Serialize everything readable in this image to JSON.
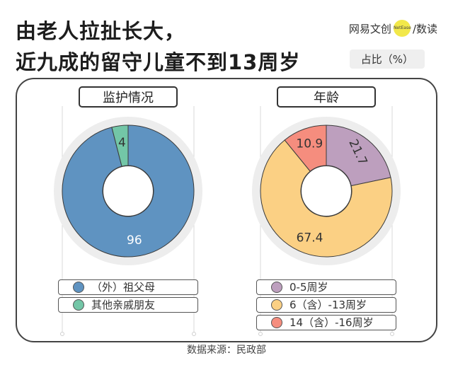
{
  "title_line1": "由老人拉扯长大，",
  "title_line2": "近九成的留守儿童不到13周岁",
  "brand": {
    "left": "网易文创",
    "mark": "NetEase",
    "right": "/数读"
  },
  "unit": "占比（%）",
  "source": "数据来源：民政部",
  "chart_data": [
    {
      "type": "pie",
      "title": "监护情况",
      "categories": [
        "（外）祖父母",
        "其他亲戚朋友"
      ],
      "values": [
        96,
        4
      ],
      "value_labels": [
        "96",
        "4"
      ],
      "colors": [
        "#5f93c1",
        "#73c6a7"
      ]
    },
    {
      "type": "pie",
      "title": "年龄",
      "categories": [
        "0-5周岁",
        "6（含）-13周岁",
        "14（含）-16周岁"
      ],
      "values": [
        21.7,
        67.4,
        10.9
      ],
      "value_labels": [
        "21.7",
        "67.4",
        "10.9"
      ],
      "colors": [
        "#bd9fbe",
        "#fbd084",
        "#f58d7e"
      ]
    }
  ]
}
